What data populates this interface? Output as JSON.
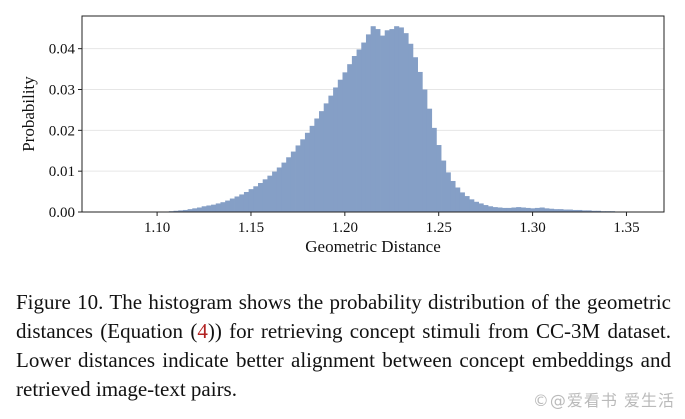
{
  "chart_data": {
    "type": "bar",
    "subtype": "histogram",
    "xlabel": "Geometric Distance",
    "ylabel": "Probability",
    "xlim": [
      1.06,
      1.37
    ],
    "ylim": [
      0,
      0.048
    ],
    "xticks": [
      1.1,
      1.15,
      1.2,
      1.25,
      1.3,
      1.35
    ],
    "xtick_labels": [
      "1.10",
      "1.15",
      "1.20",
      "1.25",
      "1.30",
      "1.35"
    ],
    "yticks": [
      0,
      0.01,
      0.02,
      0.03,
      0.04
    ],
    "ytick_labels": [
      "0.00",
      "0.01",
      "0.02",
      "0.03",
      "0.04"
    ],
    "grid": "horizontal",
    "bar_color": "#859fc6",
    "bin_width": 0.0025,
    "x": [
      1.1,
      1.1025,
      1.105,
      1.1075,
      1.11,
      1.1125,
      1.115,
      1.1175,
      1.12,
      1.1225,
      1.125,
      1.1275,
      1.13,
      1.1325,
      1.135,
      1.1375,
      1.14,
      1.1425,
      1.145,
      1.1475,
      1.15,
      1.1525,
      1.155,
      1.1575,
      1.16,
      1.1625,
      1.165,
      1.1675,
      1.17,
      1.1725,
      1.175,
      1.1775,
      1.18,
      1.1825,
      1.185,
      1.1875,
      1.19,
      1.1925,
      1.195,
      1.1975,
      1.2,
      1.2025,
      1.205,
      1.2075,
      1.21,
      1.2125,
      1.215,
      1.2175,
      1.22,
      1.2225,
      1.225,
      1.2275,
      1.23,
      1.2325,
      1.235,
      1.2375,
      1.24,
      1.2425,
      1.245,
      1.2475,
      1.25,
      1.2525,
      1.255,
      1.2575,
      1.26,
      1.2625,
      1.265,
      1.2675,
      1.27,
      1.2725,
      1.275,
      1.2775,
      1.28,
      1.2825,
      1.285,
      1.2875,
      1.29,
      1.2925,
      1.295,
      1.2975,
      1.3,
      1.3025,
      1.305,
      1.3075,
      1.31,
      1.3125,
      1.315,
      1.3175,
      1.32,
      1.3225,
      1.325,
      1.3275,
      1.33,
      1.3325,
      1.335,
      1.3375,
      1.34,
      1.3425,
      1.345,
      1.3475,
      1.35
    ],
    "values": [
      0.0001,
      0.0001,
      0.0001,
      0.0002,
      0.0003,
      0.0004,
      0.0005,
      0.0007,
      0.0009,
      0.0011,
      0.0014,
      0.0016,
      0.0018,
      0.0021,
      0.0024,
      0.0028,
      0.0033,
      0.0038,
      0.0043,
      0.0049,
      0.0056,
      0.0063,
      0.0071,
      0.008,
      0.0089,
      0.0099,
      0.0109,
      0.0121,
      0.0134,
      0.0148,
      0.0163,
      0.0178,
      0.0194,
      0.0211,
      0.0229,
      0.0247,
      0.0266,
      0.0285,
      0.0305,
      0.0324,
      0.0342,
      0.0362,
      0.0382,
      0.0398,
      0.0415,
      0.0435,
      0.0455,
      0.0448,
      0.0432,
      0.0445,
      0.0448,
      0.0455,
      0.0452,
      0.0438,
      0.0412,
      0.0379,
      0.0343,
      0.03,
      0.0253,
      0.0206,
      0.0164,
      0.0126,
      0.0097,
      0.0076,
      0.006,
      0.0048,
      0.0039,
      0.0031,
      0.0025,
      0.0021,
      0.0017,
      0.0014,
      0.0012,
      0.0011,
      0.001,
      0.001,
      0.0011,
      0.0012,
      0.0011,
      0.001,
      0.0009,
      0.001,
      0.0011,
      0.0009,
      0.0008,
      0.0007,
      0.0007,
      0.0006,
      0.0006,
      0.0005,
      0.0005,
      0.0004,
      0.0004,
      0.0003,
      0.0003,
      0.0002,
      0.0002,
      0.0002,
      0.0001,
      0.0001,
      0.0001
    ]
  },
  "caption": {
    "part1": "Figure 10. The histogram shows the probability distribution of the geometric distances (Equation (",
    "ref": "4",
    "part2": ")) for retrieving concept stimuli from CC-3M dataset. Lower distances indicate better alignment between concept embeddings and retrieved image-text pairs."
  },
  "watermark": "©@爱看书 爱生活"
}
